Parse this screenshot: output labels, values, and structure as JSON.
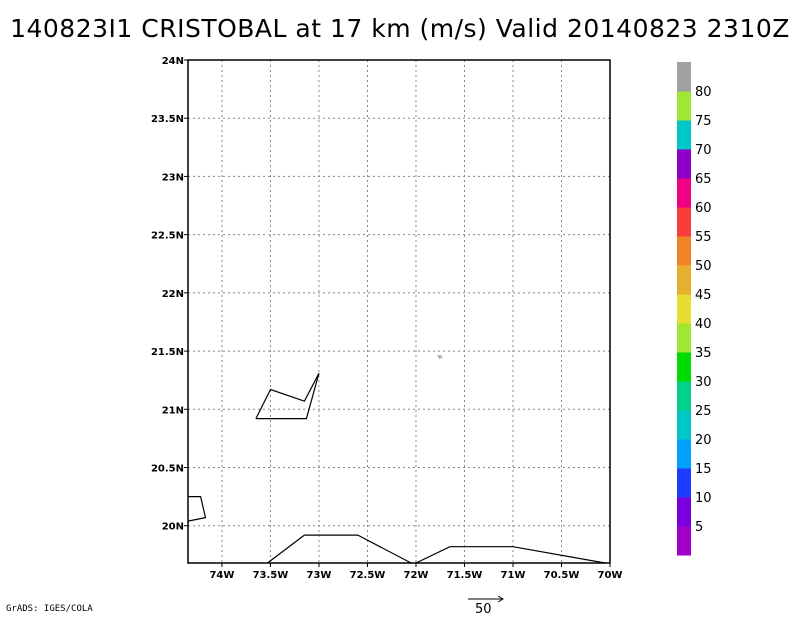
{
  "title": "140823I1 CRISTOBAL at 17 km (m/s) Valid 20140823 2310Z",
  "credit": "GrADS: IGES/COLA",
  "reference_vector": {
    "label": "50",
    "value": 50
  },
  "map": {
    "lon_range": [
      -74.35,
      -70
    ],
    "lat_range": [
      19.68,
      24
    ],
    "x_ticks": [
      {
        "lon": -74,
        "label": "74W"
      },
      {
        "lon": -73.5,
        "label": "73.5W"
      },
      {
        "lon": -73,
        "label": "73W"
      },
      {
        "lon": -72.5,
        "label": "72.5W"
      },
      {
        "lon": -72,
        "label": "72W"
      },
      {
        "lon": -71.5,
        "label": "71.5W"
      },
      {
        "lon": -71,
        "label": "71W"
      },
      {
        "lon": -70.5,
        "label": "70.5W"
      },
      {
        "lon": -70,
        "label": "70W"
      }
    ],
    "y_ticks": [
      {
        "lat": 20,
        "label": "20N"
      },
      {
        "lat": 20.5,
        "label": "20.5N"
      },
      {
        "lat": 21,
        "label": "21N"
      },
      {
        "lat": 21.5,
        "label": "21.5N"
      },
      {
        "lat": 22,
        "label": "22N"
      },
      {
        "lat": 22.5,
        "label": "22.5N"
      },
      {
        "lat": 23,
        "label": "23N"
      },
      {
        "lat": 23.5,
        "label": "23.5N"
      },
      {
        "lat": 24,
        "label": "24N"
      }
    ],
    "grid": true,
    "coastlines": [
      [
        [
          -73.65,
          20.92
        ],
        [
          -73.5,
          21.17
        ],
        [
          -73.15,
          21.07
        ],
        [
          -73.0,
          21.31
        ],
        [
          -73.13,
          20.92
        ],
        [
          -73.65,
          20.92
        ]
      ],
      [
        [
          -74.35,
          20.25
        ],
        [
          -74.22,
          20.25
        ],
        [
          -74.17,
          20.07
        ],
        [
          -74.35,
          20.04
        ]
      ],
      [
        [
          -73.53,
          19.68
        ],
        [
          -73.15,
          19.92
        ],
        [
          -72.6,
          19.92
        ],
        [
          -72.05,
          19.68
        ]
      ],
      [
        [
          -72.0,
          19.68
        ],
        [
          -71.65,
          19.82
        ],
        [
          -71.0,
          19.82
        ],
        [
          -70.05,
          19.68
        ]
      ]
    ],
    "wind_vectors": [
      {
        "lon": -71.75,
        "lat": 21.45,
        "u": -2.2,
        "v": 1.2,
        "color": "#a0a0a0"
      }
    ]
  },
  "colorbar": {
    "segments": [
      {
        "color": "#a000c8",
        "label": "5"
      },
      {
        "color": "#7800dc",
        "label": "10"
      },
      {
        "color": "#1e3cff",
        "label": "15"
      },
      {
        "color": "#00a0ff",
        "label": "20"
      },
      {
        "color": "#00c8c8",
        "label": "25"
      },
      {
        "color": "#00d28c",
        "label": "30"
      },
      {
        "color": "#00dc00",
        "label": "35"
      },
      {
        "color": "#a0e632",
        "label": "40"
      },
      {
        "color": "#e6dc32",
        "label": "45"
      },
      {
        "color": "#e6af2d",
        "label": "50"
      },
      {
        "color": "#f08228",
        "label": "55"
      },
      {
        "color": "#fa3c3c",
        "label": "60"
      },
      {
        "color": "#f00082",
        "label": "65"
      },
      {
        "color": "#8c00c8",
        "label": "70"
      },
      {
        "color": "#00c8c8",
        "label": "75"
      },
      {
        "color": "#a0e632",
        "label": "80"
      },
      {
        "color": "#a0a0a0",
        "label": ""
      }
    ]
  }
}
